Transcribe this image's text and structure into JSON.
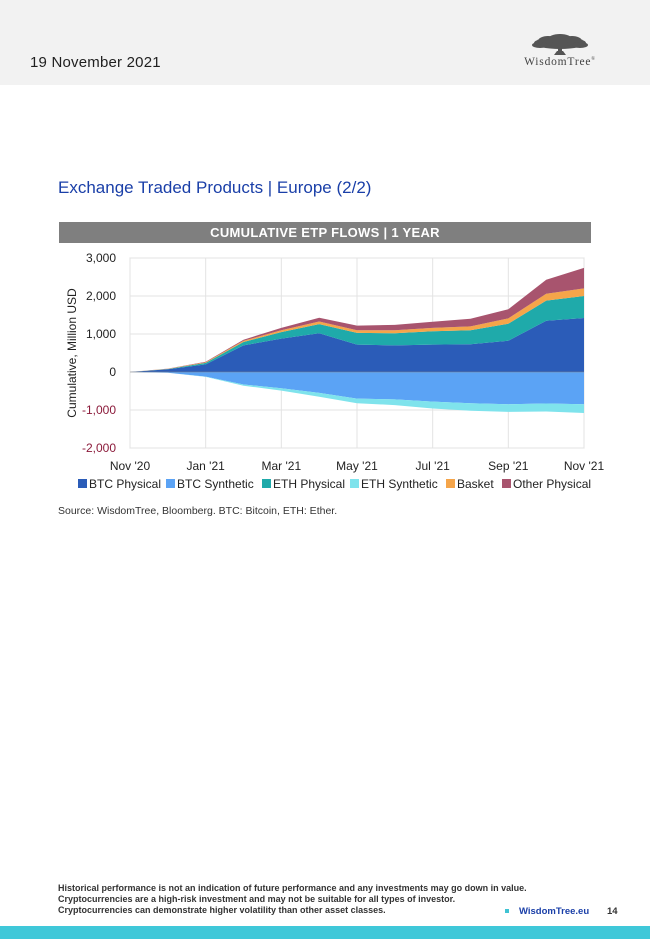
{
  "header": {
    "date": "19 November 2021",
    "logo_text": "WisdomTree",
    "logo_reg": "®"
  },
  "section_title": "Exchange Traded Products | Europe (2/2)",
  "chart_banner": "CUMULATIVE ETP FLOWS | 1 YEAR",
  "source": "Source: WisdomTree, Bloomberg. BTC: Bitcoin, ETH: Ether.",
  "disclaimer": [
    "Historical performance is not an indication of future performance and any investments may go down in value.",
    "Cryptocurrencies are a high-risk investment and may not be suitable for all types of investor.",
    "Cryptocurrencies can demonstrate higher volatility than other asset classes."
  ],
  "footer": {
    "link": "WisdomTree.eu",
    "page": "14"
  },
  "colors": {
    "btc_physical": "#2b5cb8",
    "btc_synthetic": "#5ba3f5",
    "eth_physical": "#1faaaa",
    "eth_synthetic": "#7fe3ec",
    "basket": "#f5a54a",
    "other_physical": "#a8546e",
    "negative_tick": "#8b1a3a",
    "title_blue": "#1a3fa8",
    "footer_bar": "#3fc8d9"
  },
  "chart_data": {
    "type": "area",
    "stacked": true,
    "title": "CUMULATIVE ETP FLOWS | 1 YEAR",
    "ylabel": "Cumulative, Million USD",
    "xlabel": "",
    "ylim": [
      -2000,
      3000
    ],
    "yticks": [
      3000,
      2000,
      1000,
      0,
      -1000,
      -2000
    ],
    "ytick_labels": [
      "3,000",
      "2,000",
      "1,000",
      "0",
      "-1,000",
      "-2,000"
    ],
    "xticks": [
      "Nov '20",
      "Jan '21",
      "Mar '21",
      "May '21",
      "Jul '21",
      "Sep '21",
      "Nov '21"
    ],
    "grid": true,
    "legend_position": "bottom",
    "x": [
      "Nov '20",
      "Dec '20",
      "Jan '21",
      "Feb '21",
      "Mar '21",
      "Apr '21",
      "May '21",
      "Jun '21",
      "Jul '21",
      "Aug '21",
      "Sep '21",
      "Oct '21",
      "Nov '21"
    ],
    "positive_series": [
      {
        "name": "BTC Physical",
        "color": "#2b5cb8",
        "values": [
          0,
          70,
          200,
          700,
          880,
          1020,
          720,
          700,
          720,
          730,
          820,
          1350,
          1420
        ]
      },
      {
        "name": "ETH Physical",
        "color": "#1faaaa",
        "values": [
          0,
          10,
          40,
          90,
          170,
          240,
          310,
          320,
          350,
          370,
          450,
          530,
          580
        ]
      },
      {
        "name": "Basket",
        "color": "#f5a54a",
        "values": [
          0,
          5,
          15,
          30,
          50,
          70,
          70,
          80,
          90,
          100,
          140,
          180,
          200
        ]
      },
      {
        "name": "Other Physical",
        "color": "#a8546e",
        "values": [
          0,
          5,
          15,
          30,
          60,
          100,
          120,
          140,
          160,
          200,
          240,
          370,
          540
        ]
      }
    ],
    "negative_series": [
      {
        "name": "BTC Synthetic",
        "color": "#5ba3f5",
        "values": [
          0,
          -20,
          -120,
          -330,
          -430,
          -550,
          -700,
          -720,
          -780,
          -820,
          -850,
          -830,
          -850
        ]
      },
      {
        "name": "ETH Synthetic",
        "color": "#7fe3ec",
        "values": [
          0,
          0,
          -10,
          -30,
          -60,
          -100,
          -120,
          -150,
          -180,
          -200,
          -200,
          -210,
          -230
        ]
      }
    ],
    "legend": [
      "BTC Physical",
      "BTC Synthetic",
      "ETH Physical",
      "ETH Synthetic",
      "Basket",
      "Other Physical"
    ]
  }
}
